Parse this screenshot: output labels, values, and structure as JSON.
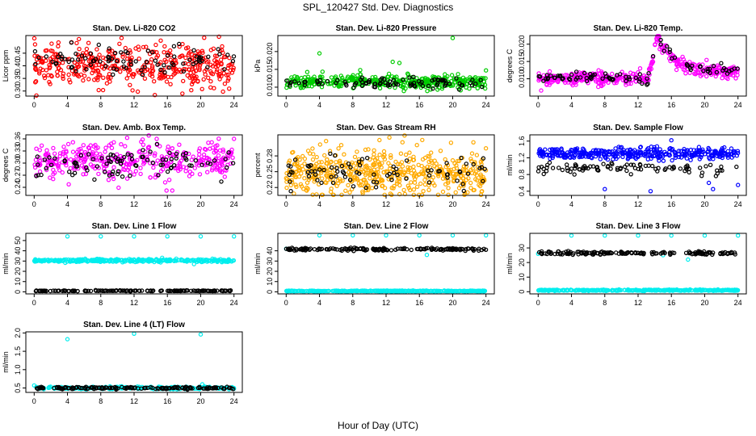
{
  "figure": {
    "title": "SPL_120427  Std. Dev. Diagnostics",
    "xlabel": "Hour of Day (UTC)"
  },
  "chart_data": [
    {
      "type": "scatter",
      "title": "Stan. Dev. Li-820 CO2",
      "ylabel": "Licor ppm",
      "xlim": [
        -1,
        25
      ],
      "ylim": [
        0.28,
        0.52
      ],
      "xticks": [
        "0",
        "4",
        "8",
        "12",
        "16",
        "20",
        "24"
      ],
      "yticks": [
        "0.30",
        "0.35",
        "0.40",
        "0.45"
      ],
      "series": [
        {
          "color": "#ff0000",
          "pattern": "noise",
          "n": 420,
          "x_range": [
            0,
            24
          ],
          "center": 0.4,
          "spread": 0.04,
          "outliers": [
            [
              10.5,
              0.51
            ],
            [
              15.2,
              0.5
            ],
            [
              17.8,
              0.29
            ],
            [
              5.1,
              0.49
            ]
          ]
        },
        {
          "color": "#000000",
          "pattern": "noise",
          "n": 90,
          "x_range": [
            0,
            24
          ],
          "center": 0.42,
          "spread": 0.03
        }
      ]
    },
    {
      "type": "scatter",
      "title": "Stan. Dev. Li-820 Pressure",
      "ylabel": "kPa",
      "xlim": [
        -1,
        25
      ],
      "ylim": [
        0.0075,
        0.0245
      ],
      "xticks": [
        "0",
        "4",
        "8",
        "12",
        "16",
        "20",
        "24"
      ],
      "yticks": [
        "0.010",
        "0.015",
        "0.020"
      ],
      "series": [
        {
          "color": "#00cc00",
          "pattern": "noise",
          "n": 420,
          "x_range": [
            0,
            24
          ],
          "center": 0.0115,
          "spread": 0.0009,
          "outliers": [
            [
              20.0,
              0.0238
            ],
            [
              4.0,
              0.0195
            ],
            [
              8.9,
              0.0148
            ],
            [
              13.6,
              0.0168
            ],
            [
              24.0,
              0.0147
            ],
            [
              12.8,
              0.0171
            ],
            [
              2.3,
              0.0112
            ]
          ]
        },
        {
          "color": "#000000",
          "pattern": "noise",
          "n": 90,
          "x_range": [
            0,
            24
          ],
          "center": 0.0112,
          "spread": 0.0007
        }
      ]
    },
    {
      "type": "scatter",
      "title": "Stan. Dev. Li-820 Temp.",
      "ylabel": "degrees C",
      "xlim": [
        -1,
        25
      ],
      "ylim": [
        0.005,
        0.0225
      ],
      "xticks": [
        "0",
        "4",
        "8",
        "12",
        "16",
        "20",
        "24"
      ],
      "yticks": [
        "0.010",
        "0.015",
        "0.020"
      ],
      "series": [
        {
          "color": "#ff00ff",
          "pattern": "temp_peak",
          "n": 420,
          "x_range": [
            0,
            24
          ],
          "center": 0.01,
          "spread": 0.0009
        },
        {
          "color": "#000000",
          "pattern": "temp_peak",
          "n": 90,
          "x_range": [
            0,
            24
          ],
          "center": 0.0102,
          "spread": 0.0007
        }
      ]
    },
    {
      "type": "scatter",
      "title": "Stan. Dev. Amb. Box Temp.",
      "ylabel": "degrees C",
      "xlim": [
        -1,
        25
      ],
      "ylim": [
        0.22,
        0.37
      ],
      "xticks": [
        "0",
        "4",
        "8",
        "12",
        "16",
        "20",
        "24"
      ],
      "yticks": [
        "0.24",
        "0.27",
        "0.30",
        "0.33",
        "0.36"
      ],
      "series": [
        {
          "color": "#ff00ff",
          "pattern": "noise",
          "n": 380,
          "x_range": [
            0,
            24
          ],
          "center": 0.305,
          "spread": 0.022,
          "outliers": [
            [
              15.9,
              0.232
            ],
            [
              24.0,
              0.36
            ],
            [
              4.1,
              0.347
            ]
          ]
        },
        {
          "color": "#000000",
          "pattern": "noise",
          "n": 90,
          "x_range": [
            0,
            24
          ],
          "center": 0.302,
          "spread": 0.018
        }
      ]
    },
    {
      "type": "scatter",
      "title": "Stan. Dev. Gas Stream RH",
      "ylabel": "percent",
      "xlim": [
        -1,
        25
      ],
      "ylim": [
        0.205,
        0.32
      ],
      "xticks": [
        "0",
        "4",
        "8",
        "12",
        "16",
        "20",
        "24"
      ],
      "yticks": [
        "0.22",
        "0.25",
        "0.28"
      ],
      "series": [
        {
          "color": "#ffaa00",
          "pattern": "noise",
          "n": 520,
          "x_range": [
            0,
            24
          ],
          "center": 0.248,
          "spread": 0.022,
          "outliers": [
            [
              12.4,
              0.315
            ],
            [
              11.2,
              0.31
            ],
            [
              19.8,
              0.305
            ]
          ]
        },
        {
          "color": "#000000",
          "pattern": "noise",
          "n": 80,
          "x_range": [
            0,
            24
          ],
          "center": 0.248,
          "spread": 0.016
        }
      ]
    },
    {
      "type": "scatter",
      "title": "Stan. Dev. Sample Flow",
      "ylabel": "ml/min",
      "xlim": [
        -1,
        25
      ],
      "ylim": [
        0.3,
        1.75
      ],
      "xticks": [
        "0",
        "4",
        "8",
        "12",
        "16",
        "20",
        "24"
      ],
      "yticks": [
        "0.4",
        "0.8",
        "1.2",
        "1.6"
      ],
      "series": [
        {
          "color": "#0000ff",
          "pattern": "noise",
          "n": 380,
          "x_range": [
            0,
            24
          ],
          "center": 1.3,
          "spread": 0.07,
          "outliers": [
            [
              8.0,
              0.45
            ],
            [
              13.5,
              0.4
            ],
            [
              16.0,
              1.62
            ],
            [
              21.0,
              0.45
            ],
            [
              20.5,
              0.6
            ],
            [
              24.0,
              0.55
            ]
          ]
        },
        {
          "color": "#000000",
          "pattern": "noise",
          "n": 90,
          "x_range": [
            0,
            24
          ],
          "center": 0.95,
          "spread": 0.06
        }
      ]
    },
    {
      "type": "scatter",
      "title": "Stan. Dev. Line 1 Flow",
      "ylabel": "ml/min",
      "xlim": [
        -1,
        25
      ],
      "ylim": [
        -2,
        57
      ],
      "xticks": [
        "0",
        "4",
        "8",
        "12",
        "16",
        "20",
        "24"
      ],
      "yticks": [
        "0",
        "10",
        "20",
        "30",
        "40",
        "50"
      ],
      "series": [
        {
          "color": "#00eeee",
          "pattern": "band",
          "n": 340,
          "x_range": [
            0,
            24
          ],
          "center": 30.5,
          "spread": 0.7,
          "outliers": [
            [
              4.0,
              54
            ],
            [
              8.0,
              54
            ],
            [
              12.0,
              54
            ],
            [
              16.0,
              54
            ],
            [
              20.0,
              54
            ],
            [
              24.0,
              54
            ],
            [
              19.2,
              27
            ]
          ]
        },
        {
          "color": "#000000",
          "pattern": "band",
          "n": 160,
          "x_range": [
            0,
            24
          ],
          "center": 1.0,
          "spread": 0.2
        }
      ]
    },
    {
      "type": "scatter",
      "title": "Stan. Dev. Line 2 Flow",
      "ylabel": "ml/min",
      "xlim": [
        -1,
        25
      ],
      "ylim": [
        -2,
        57
      ],
      "xticks": [
        "0",
        "4",
        "8",
        "12",
        "16",
        "20",
        "24"
      ],
      "yticks": [
        "0",
        "10",
        "20",
        "30",
        "40"
      ],
      "series": [
        {
          "color": "#00eeee",
          "pattern": "band",
          "n": 340,
          "x_range": [
            0,
            24
          ],
          "center": 0.8,
          "spread": 0.2,
          "outliers": [
            [
              4.0,
              55
            ],
            [
              8.0,
              55
            ],
            [
              12.0,
              55
            ],
            [
              16.0,
              55
            ],
            [
              20.0,
              55
            ],
            [
              24.0,
              55
            ],
            [
              0.0,
              42
            ],
            [
              16.9,
              36
            ]
          ]
        },
        {
          "color": "#000000",
          "pattern": "band",
          "n": 160,
          "x_range": [
            0,
            24
          ],
          "center": 41.5,
          "spread": 0.6
        }
      ]
    },
    {
      "type": "scatter",
      "title": "Stan. Dev. Line 3 Flow",
      "ylabel": "ml/min",
      "xlim": [
        -1,
        25
      ],
      "ylim": [
        -1.5,
        40
      ],
      "xticks": [
        "0",
        "4",
        "8",
        "12",
        "16",
        "20",
        "24"
      ],
      "yticks": [
        "0",
        "10",
        "20",
        "30"
      ],
      "series": [
        {
          "color": "#00eeee",
          "pattern": "band",
          "n": 340,
          "x_range": [
            0,
            24
          ],
          "center": 1.0,
          "spread": 0.2,
          "outliers": [
            [
              4.0,
              38.5
            ],
            [
              8.0,
              38.5
            ],
            [
              12.0,
              38.5
            ],
            [
              16.0,
              38.5
            ],
            [
              20.0,
              38.5
            ],
            [
              24.0,
              38.5
            ],
            [
              0.0,
              26
            ],
            [
              18.0,
              22
            ],
            [
              15.0,
              25
            ]
          ]
        },
        {
          "color": "#000000",
          "pattern": "band",
          "n": 160,
          "x_range": [
            0,
            24
          ],
          "center": 26.5,
          "spread": 0.5
        }
      ]
    },
    {
      "type": "scatter",
      "title": "Stan. Dev. Line 4 (LT) Flow",
      "ylabel": "ml/min",
      "xlim": [
        -1,
        25
      ],
      "ylim": [
        0.38,
        2.03
      ],
      "xticks": [
        "0",
        "4",
        "8",
        "12",
        "16",
        "20",
        "24"
      ],
      "yticks": [
        "0.5",
        "1.0",
        "1.5",
        "2.0"
      ],
      "series": [
        {
          "color": "#00eeee",
          "pattern": "band",
          "n": 200,
          "x_range": [
            0,
            24
          ],
          "center": 0.5,
          "spread": 0.02,
          "outliers": [
            [
              4.0,
              1.83
            ],
            [
              12.0,
              1.98
            ],
            [
              20.0,
              1.96
            ],
            [
              0.0,
              0.57
            ],
            [
              20.2,
              0.6
            ]
          ]
        },
        {
          "color": "#000000",
          "pattern": "band",
          "n": 160,
          "x_range": [
            0,
            24
          ],
          "center": 0.5,
          "spread": 0.015
        }
      ]
    }
  ]
}
